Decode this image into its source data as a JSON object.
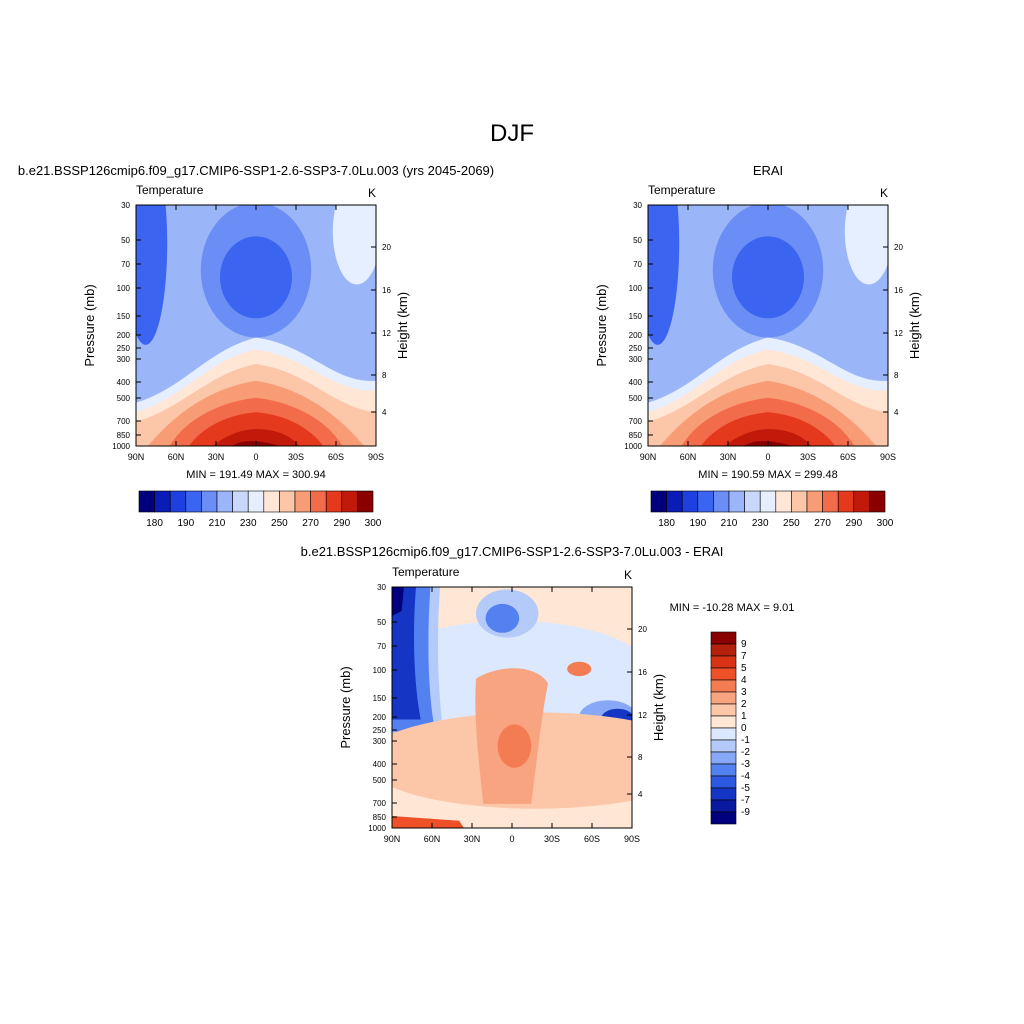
{
  "title": "DJF",
  "chart_data": [
    {
      "type": "heatmap",
      "title": "b.e21.BSSP126cmip6.f09_g17.CMIP6-SSP1-2.6-SSP3-7.0Lu.003 (yrs 2045-2069)",
      "left_string": "Temperature",
      "right_string": "K",
      "ylabel": "Pressure (mb)",
      "ylabel_right": "Height (km)",
      "x_ticks": [
        "90N",
        "60N",
        "30N",
        "0",
        "30S",
        "60S",
        "90S"
      ],
      "y_ticks": [
        "30",
        "50",
        "70",
        "100",
        "150",
        "200",
        "250",
        "300",
        "400",
        "500",
        "700",
        "850",
        "1000"
      ],
      "y_right_ticks": [
        "20",
        "16",
        "12",
        "8",
        "4"
      ],
      "stats": "MIN = 191.49  MAX = 300.94",
      "colorbar": {
        "orientation": "horizontal",
        "labels": [
          "180",
          "190",
          "210",
          "230",
          "250",
          "270",
          "290",
          "300"
        ],
        "colors": [
          "#00007f",
          "#0a1cb5",
          "#1e40e0",
          "#3b64f0",
          "#6a8ef5",
          "#9ab5f8",
          "#c7d8fb",
          "#e6efff",
          "#ffe6d5",
          "#fcc6a8",
          "#f89c76",
          "#f26b4a",
          "#e4391c",
          "#c21a0a",
          "#8a0000"
        ]
      }
    },
    {
      "type": "heatmap",
      "title": "ERAI",
      "left_string": "Temperature",
      "right_string": "K",
      "ylabel": "Pressure (mb)",
      "ylabel_right": "Height (km)",
      "x_ticks": [
        "90N",
        "60N",
        "30N",
        "0",
        "30S",
        "60S",
        "90S"
      ],
      "y_ticks": [
        "30",
        "50",
        "70",
        "100",
        "150",
        "200",
        "250",
        "300",
        "400",
        "500",
        "700",
        "850",
        "1000"
      ],
      "y_right_ticks": [
        "20",
        "16",
        "12",
        "8",
        "4"
      ],
      "stats": "MIN = 190.59  MAX = 299.48",
      "colorbar": {
        "orientation": "horizontal",
        "labels": [
          "180",
          "190",
          "210",
          "230",
          "250",
          "270",
          "290",
          "300"
        ],
        "colors": [
          "#00007f",
          "#0a1cb5",
          "#1e40e0",
          "#3b64f0",
          "#6a8ef5",
          "#9ab5f8",
          "#c7d8fb",
          "#e6efff",
          "#ffe6d5",
          "#fcc6a8",
          "#f89c76",
          "#f26b4a",
          "#e4391c",
          "#c21a0a",
          "#8a0000"
        ]
      }
    },
    {
      "type": "heatmap",
      "title": "b.e21.BSSP126cmip6.f09_g17.CMIP6-SSP1-2.6-SSP3-7.0Lu.003 - ERAI",
      "left_string": "Temperature",
      "right_string": "K",
      "ylabel": "Pressure (mb)",
      "ylabel_right": "Height (km)",
      "x_ticks": [
        "90N",
        "60N",
        "30N",
        "0",
        "30S",
        "60S",
        "90S"
      ],
      "y_ticks": [
        "30",
        "50",
        "70",
        "100",
        "150",
        "200",
        "250",
        "300",
        "400",
        "500",
        "700",
        "850",
        "1000"
      ],
      "y_right_ticks": [
        "20",
        "16",
        "12",
        "8",
        "4"
      ],
      "stats": "MIN = -10.28  MAX =   9.01",
      "colorbar": {
        "orientation": "vertical",
        "labels": [
          "9",
          "7",
          "5",
          "4",
          "3",
          "2",
          "1",
          "0",
          "-1",
          "-2",
          "-3",
          "-4",
          "-5",
          "-7",
          "-9"
        ],
        "colors": [
          "#8a0000",
          "#b3200c",
          "#d83314",
          "#ee5028",
          "#f47c52",
          "#f8a480",
          "#fcc6a8",
          "#ffe6d5",
          "#dbe8fd",
          "#b4cbfa",
          "#86a8f6",
          "#5481f0",
          "#2c58e2",
          "#1535c4",
          "#0a1aa0",
          "#00007f"
        ]
      }
    }
  ]
}
